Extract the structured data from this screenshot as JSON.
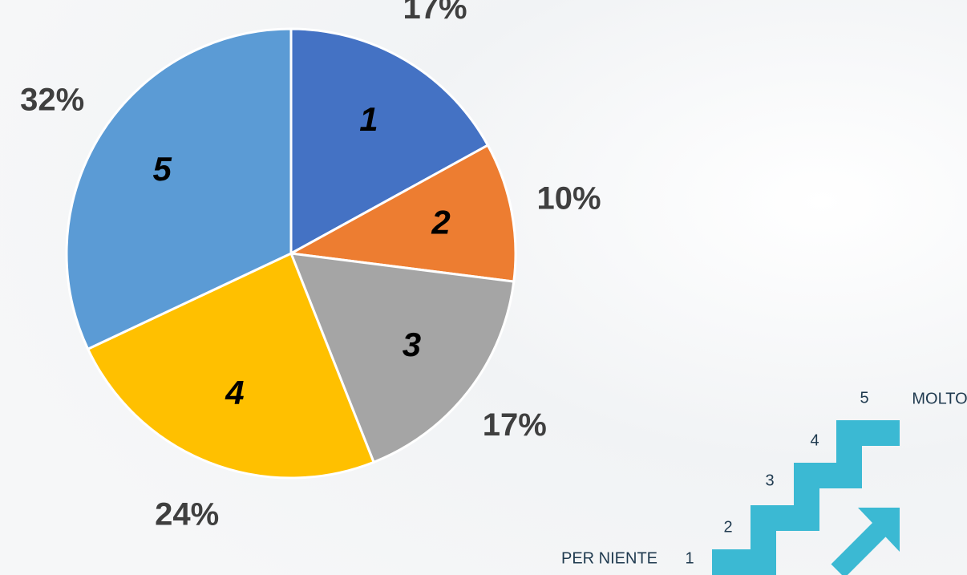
{
  "chart_data": {
    "type": "pie",
    "categories": [
      "1",
      "2",
      "3",
      "4",
      "5"
    ],
    "values": [
      17,
      10,
      17,
      24,
      32
    ],
    "value_labels": [
      "17%",
      "10%",
      "17%",
      "24%",
      "32%"
    ],
    "colors": [
      "#4472c4",
      "#ed7d31",
      "#a5a5a5",
      "#ffc000",
      "#5b9bd5"
    ]
  },
  "scale_legend": {
    "low_label": "PER NIENTE",
    "high_label": "MOLTO",
    "steps": [
      "1",
      "2",
      "3",
      "4",
      "5"
    ]
  }
}
